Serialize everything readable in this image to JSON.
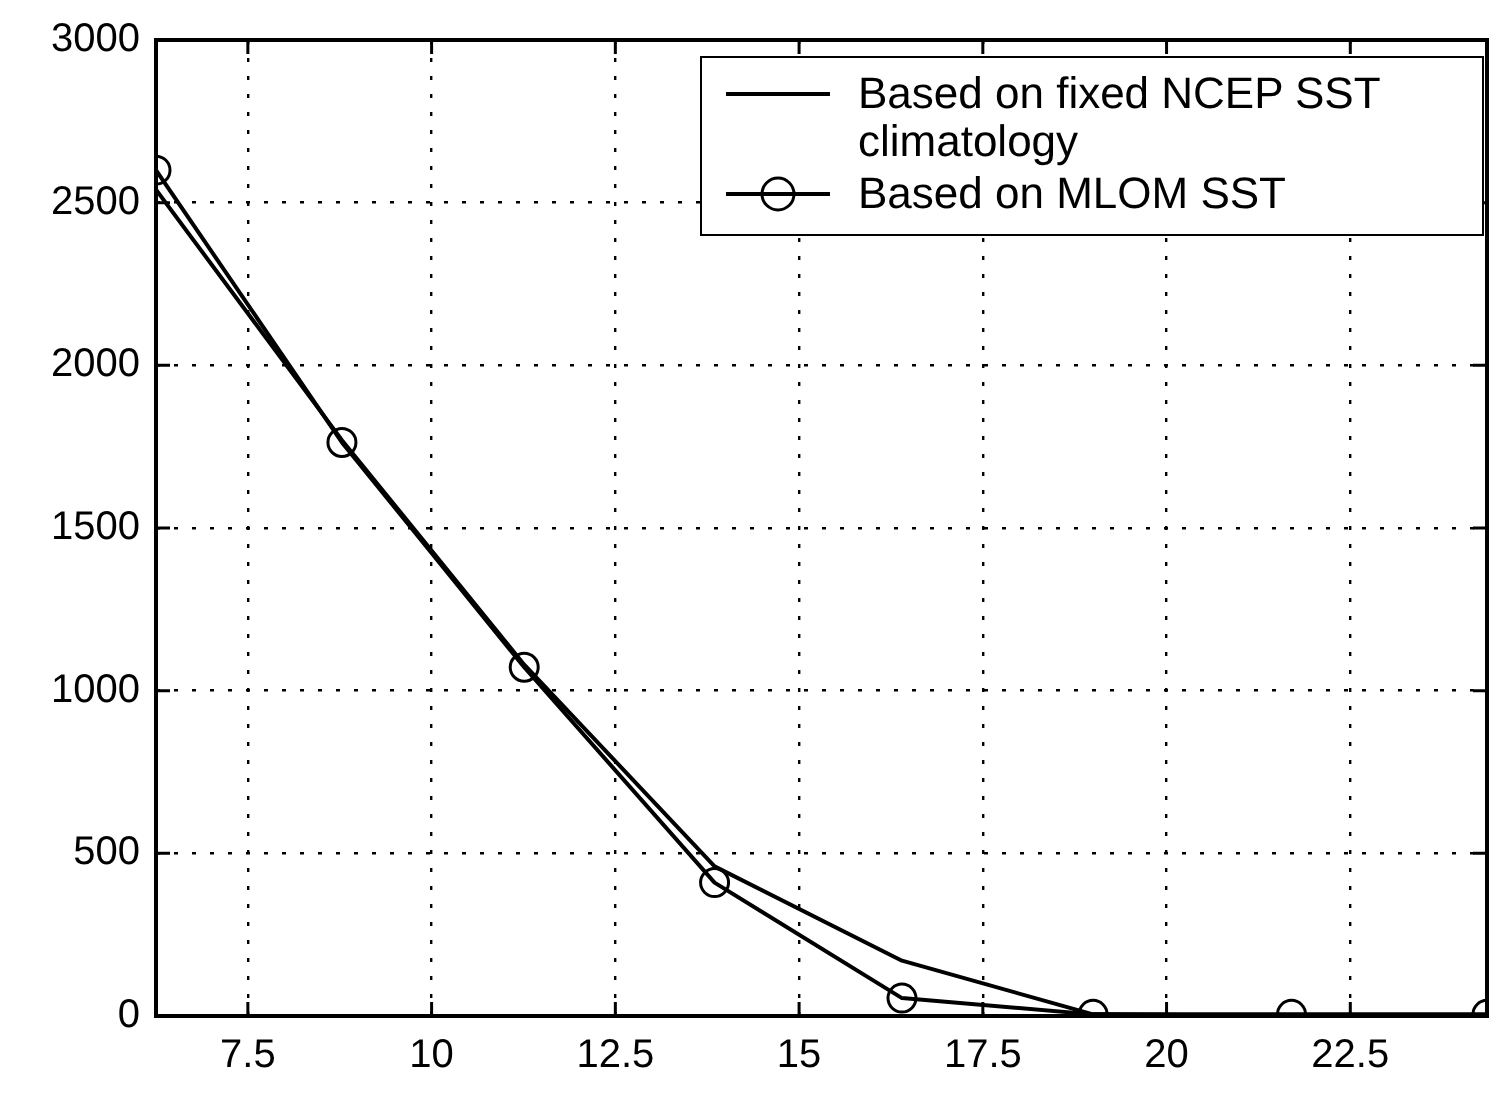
{
  "chart_data": {
    "type": "line",
    "x": [
      6.25,
      8.78,
      11.26,
      13.85,
      16.4,
      19.0,
      21.7,
      24.36
    ],
    "series": [
      {
        "name": "Based on fixed NCEP SST climatology",
        "color": "#000000",
        "marker": "none",
        "values": [
          2540,
          1770,
          1080,
          460,
          170,
          5,
          0,
          0
        ]
      },
      {
        "name": "Based on MLOM SST",
        "color": "#000000",
        "marker": "circle",
        "values": [
          2600,
          1763,
          1072,
          410,
          55,
          5,
          5,
          5
        ]
      }
    ],
    "xlim": [
      6.25,
      24.36
    ],
    "xticks": [
      7.5,
      10,
      12.5,
      15,
      17.5,
      20,
      22.5
    ],
    "ylim": [
      0,
      3000
    ],
    "yticks": [
      0,
      500,
      1000,
      1500,
      2000,
      2500,
      3000
    ],
    "grid": true,
    "legend": "top right",
    "line_style": "solid"
  }
}
